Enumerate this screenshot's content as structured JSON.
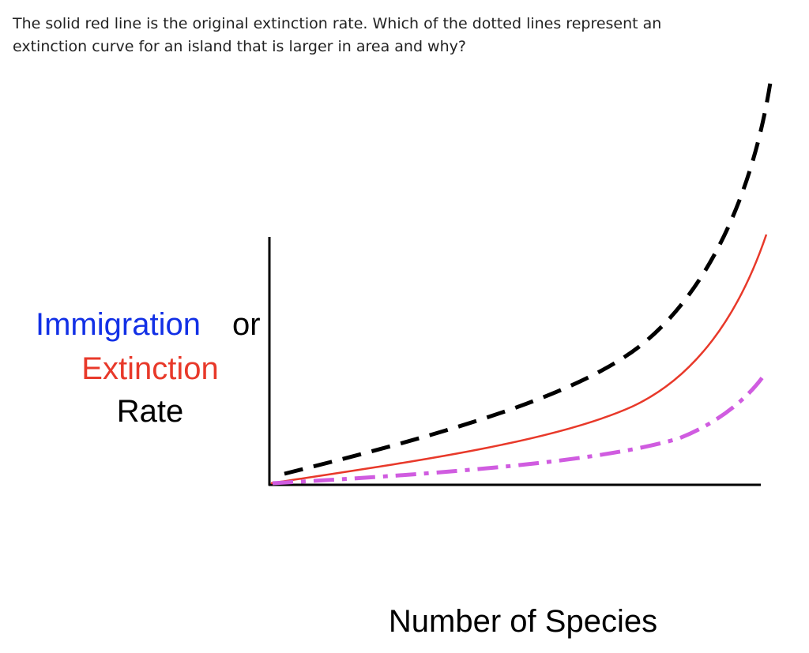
{
  "question": {
    "lines": [
      "The solid red line is the original extinction rate. Which of the dotted lines represent an",
      "extinction curve for an island that is larger in area and why?"
    ]
  },
  "diagram": {
    "y_axis_label": {
      "immigration": "Immigration",
      "or": "or",
      "extinction": "Extinction",
      "rate": "Rate"
    },
    "x_axis_label": "Number of Species"
  }
}
